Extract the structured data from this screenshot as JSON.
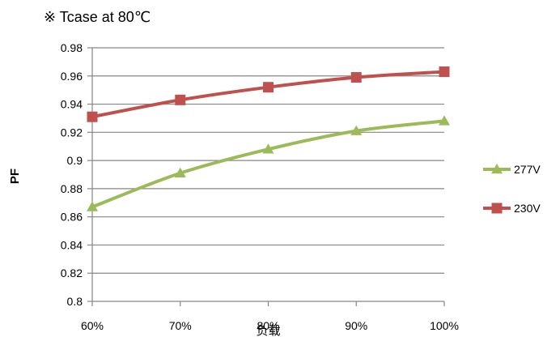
{
  "chart_data": {
    "type": "line",
    "title": "※ Tcase at 80℃",
    "xlabel": "负载",
    "ylabel": "PF",
    "categories": [
      "60%",
      "70%",
      "80%",
      "90%",
      "100%"
    ],
    "ylim": [
      0.8,
      0.98
    ],
    "yticks": [
      "0.8",
      "0.82",
      "0.84",
      "0.86",
      "0.88",
      "0.9",
      "0.92",
      "0.94",
      "0.96",
      "0.98"
    ],
    "grid": true,
    "legend_position": "right",
    "series": [
      {
        "name": "277V",
        "values": [
          0.867,
          0.891,
          0.908,
          0.921,
          0.928
        ],
        "color": "#9bbb59",
        "marker": "triangle"
      },
      {
        "name": "230V",
        "values": [
          0.931,
          0.943,
          0.952,
          0.959,
          0.963
        ],
        "color": "#c0504d",
        "marker": "square"
      }
    ]
  }
}
